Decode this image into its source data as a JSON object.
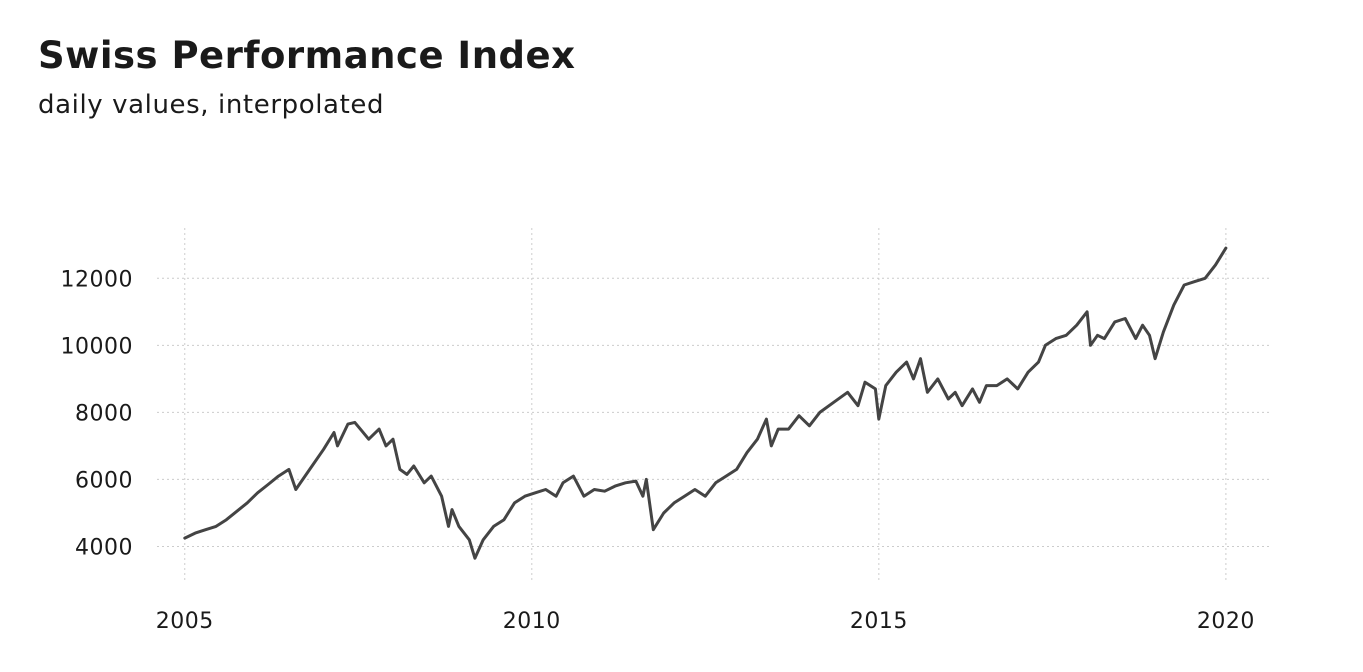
{
  "chart_data": {
    "type": "line",
    "title": "Swiss Performance Index",
    "subtitle": "daily values, interpolated",
    "xlabel": "",
    "ylabel": "",
    "x_ticks": [
      2005,
      2010,
      2015,
      2020
    ],
    "y_ticks": [
      4000,
      6000,
      8000,
      10000,
      12000
    ],
    "xlim": [
      2004.6,
      2020.65
    ],
    "ylim": [
      3000,
      13500
    ],
    "grid": true,
    "legend": "none",
    "colors": {
      "line": "#444444",
      "grid": "#cccccc"
    },
    "series": [
      {
        "x": [
          2005.0,
          2005.15,
          2005.3,
          2005.45,
          2005.6,
          2005.75,
          2005.9,
          2006.05,
          2006.2,
          2006.35,
          2006.5,
          2006.6,
          2006.8,
          2007.0,
          2007.15,
          2007.2,
          2007.35,
          2007.45,
          2007.55,
          2007.65,
          2007.8,
          2007.9,
          2008.0,
          2008.1,
          2008.2,
          2008.3,
          2008.45,
          2008.55,
          2008.7,
          2008.8,
          2008.85,
          2008.95,
          2009.1,
          2009.18,
          2009.3,
          2009.45,
          2009.6,
          2009.75,
          2009.9,
          2010.05,
          2010.2,
          2010.35,
          2010.45,
          2010.6,
          2010.75,
          2010.9,
          2011.05,
          2011.2,
          2011.35,
          2011.5,
          2011.6,
          2011.65,
          2011.75,
          2011.9,
          2012.05,
          2012.2,
          2012.35,
          2012.5,
          2012.65,
          2012.8,
          2012.95,
          2013.1,
          2013.25,
          2013.38,
          2013.45,
          2013.55,
          2013.7,
          2013.85,
          2014.0,
          2014.15,
          2014.35,
          2014.55,
          2014.7,
          2014.8,
          2014.95,
          2015.0,
          2015.1,
          2015.25,
          2015.4,
          2015.5,
          2015.6,
          2015.7,
          2015.85,
          2016.0,
          2016.1,
          2016.2,
          2016.35,
          2016.45,
          2016.55,
          2016.7,
          2016.85,
          2017.0,
          2017.15,
          2017.3,
          2017.4,
          2017.55,
          2017.7,
          2017.85,
          2018.0,
          2018.05,
          2018.15,
          2018.25,
          2018.4,
          2018.55,
          2018.7,
          2018.8,
          2018.9,
          2018.98,
          2019.1,
          2019.25,
          2019.4,
          2019.55,
          2019.7,
          2019.85,
          2020.0
        ],
        "y": [
          4250,
          4400,
          4500,
          4600,
          4800,
          5050,
          5300,
          5600,
          5850,
          6100,
          6300,
          5700,
          6300,
          6900,
          7400,
          7000,
          7650,
          7700,
          7450,
          7200,
          7500,
          7000,
          7200,
          6300,
          6150,
          6400,
          5900,
          6100,
          5500,
          4600,
          5100,
          4600,
          4200,
          3650,
          4200,
          4600,
          4800,
          5300,
          5500,
          5600,
          5700,
          5500,
          5900,
          6100,
          5500,
          5700,
          5650,
          5800,
          5900,
          5950,
          5500,
          6000,
          4500,
          5000,
          5300,
          5500,
          5700,
          5500,
          5900,
          6100,
          6300,
          6800,
          7200,
          7800,
          7000,
          7500,
          7500,
          7900,
          7600,
          8000,
          8300,
          8600,
          8200,
          8900,
          8700,
          7800,
          8800,
          9200,
          9500,
          9000,
          9600,
          8600,
          9000,
          8400,
          8600,
          8200,
          8700,
          8300,
          8800,
          8800,
          9000,
          8700,
          9200,
          9500,
          10000,
          10200,
          10300,
          10600,
          11000,
          10000,
          10300,
          10200,
          10700,
          10800,
          10200,
          10600,
          10300,
          9600,
          10400,
          11200,
          11800,
          11900,
          12000,
          12400,
          12900
        ]
      }
    ]
  }
}
